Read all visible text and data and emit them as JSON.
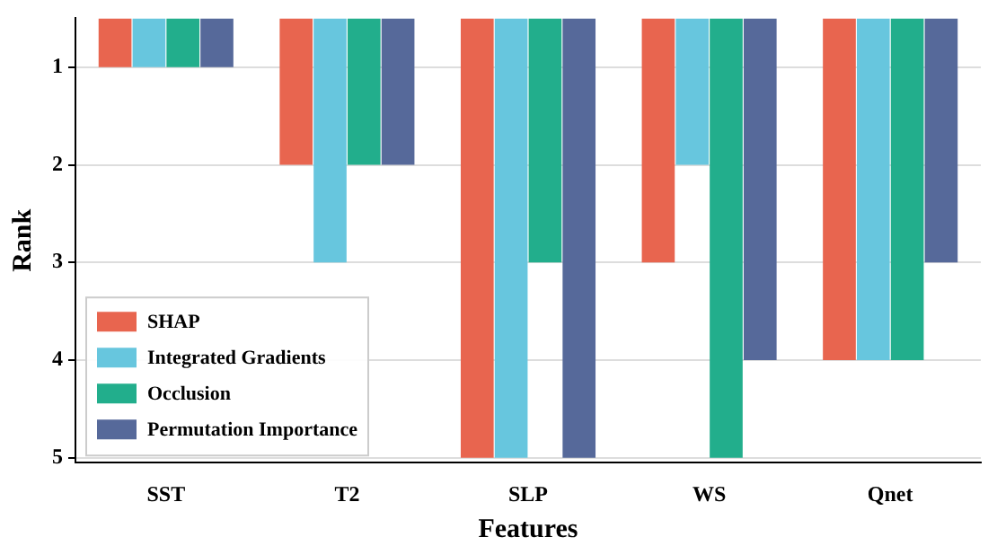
{
  "chart_data": {
    "type": "bar",
    "xlabel": "Features",
    "ylabel": "Rank",
    "categories": [
      "SST",
      "T2",
      "SLP",
      "WS",
      "Qnet"
    ],
    "series": [
      {
        "name": "SHAP",
        "color": "#e8654f",
        "values": [
          1,
          2,
          5,
          3,
          4
        ]
      },
      {
        "name": "Integrated Gradients",
        "color": "#67c6de",
        "values": [
          1,
          3,
          5,
          2,
          4
        ]
      },
      {
        "name": "Occlusion",
        "color": "#22ae8c",
        "values": [
          1,
          2,
          3,
          5,
          4
        ]
      },
      {
        "name": "Permutation Importance",
        "color": "#56699a",
        "values": [
          1,
          2,
          5,
          4,
          3
        ]
      }
    ],
    "ylim": [
      5.05,
      0.5
    ],
    "yticks": [
      1,
      2,
      3,
      4,
      5
    ],
    "grid": "y",
    "legend": "bottom left"
  }
}
